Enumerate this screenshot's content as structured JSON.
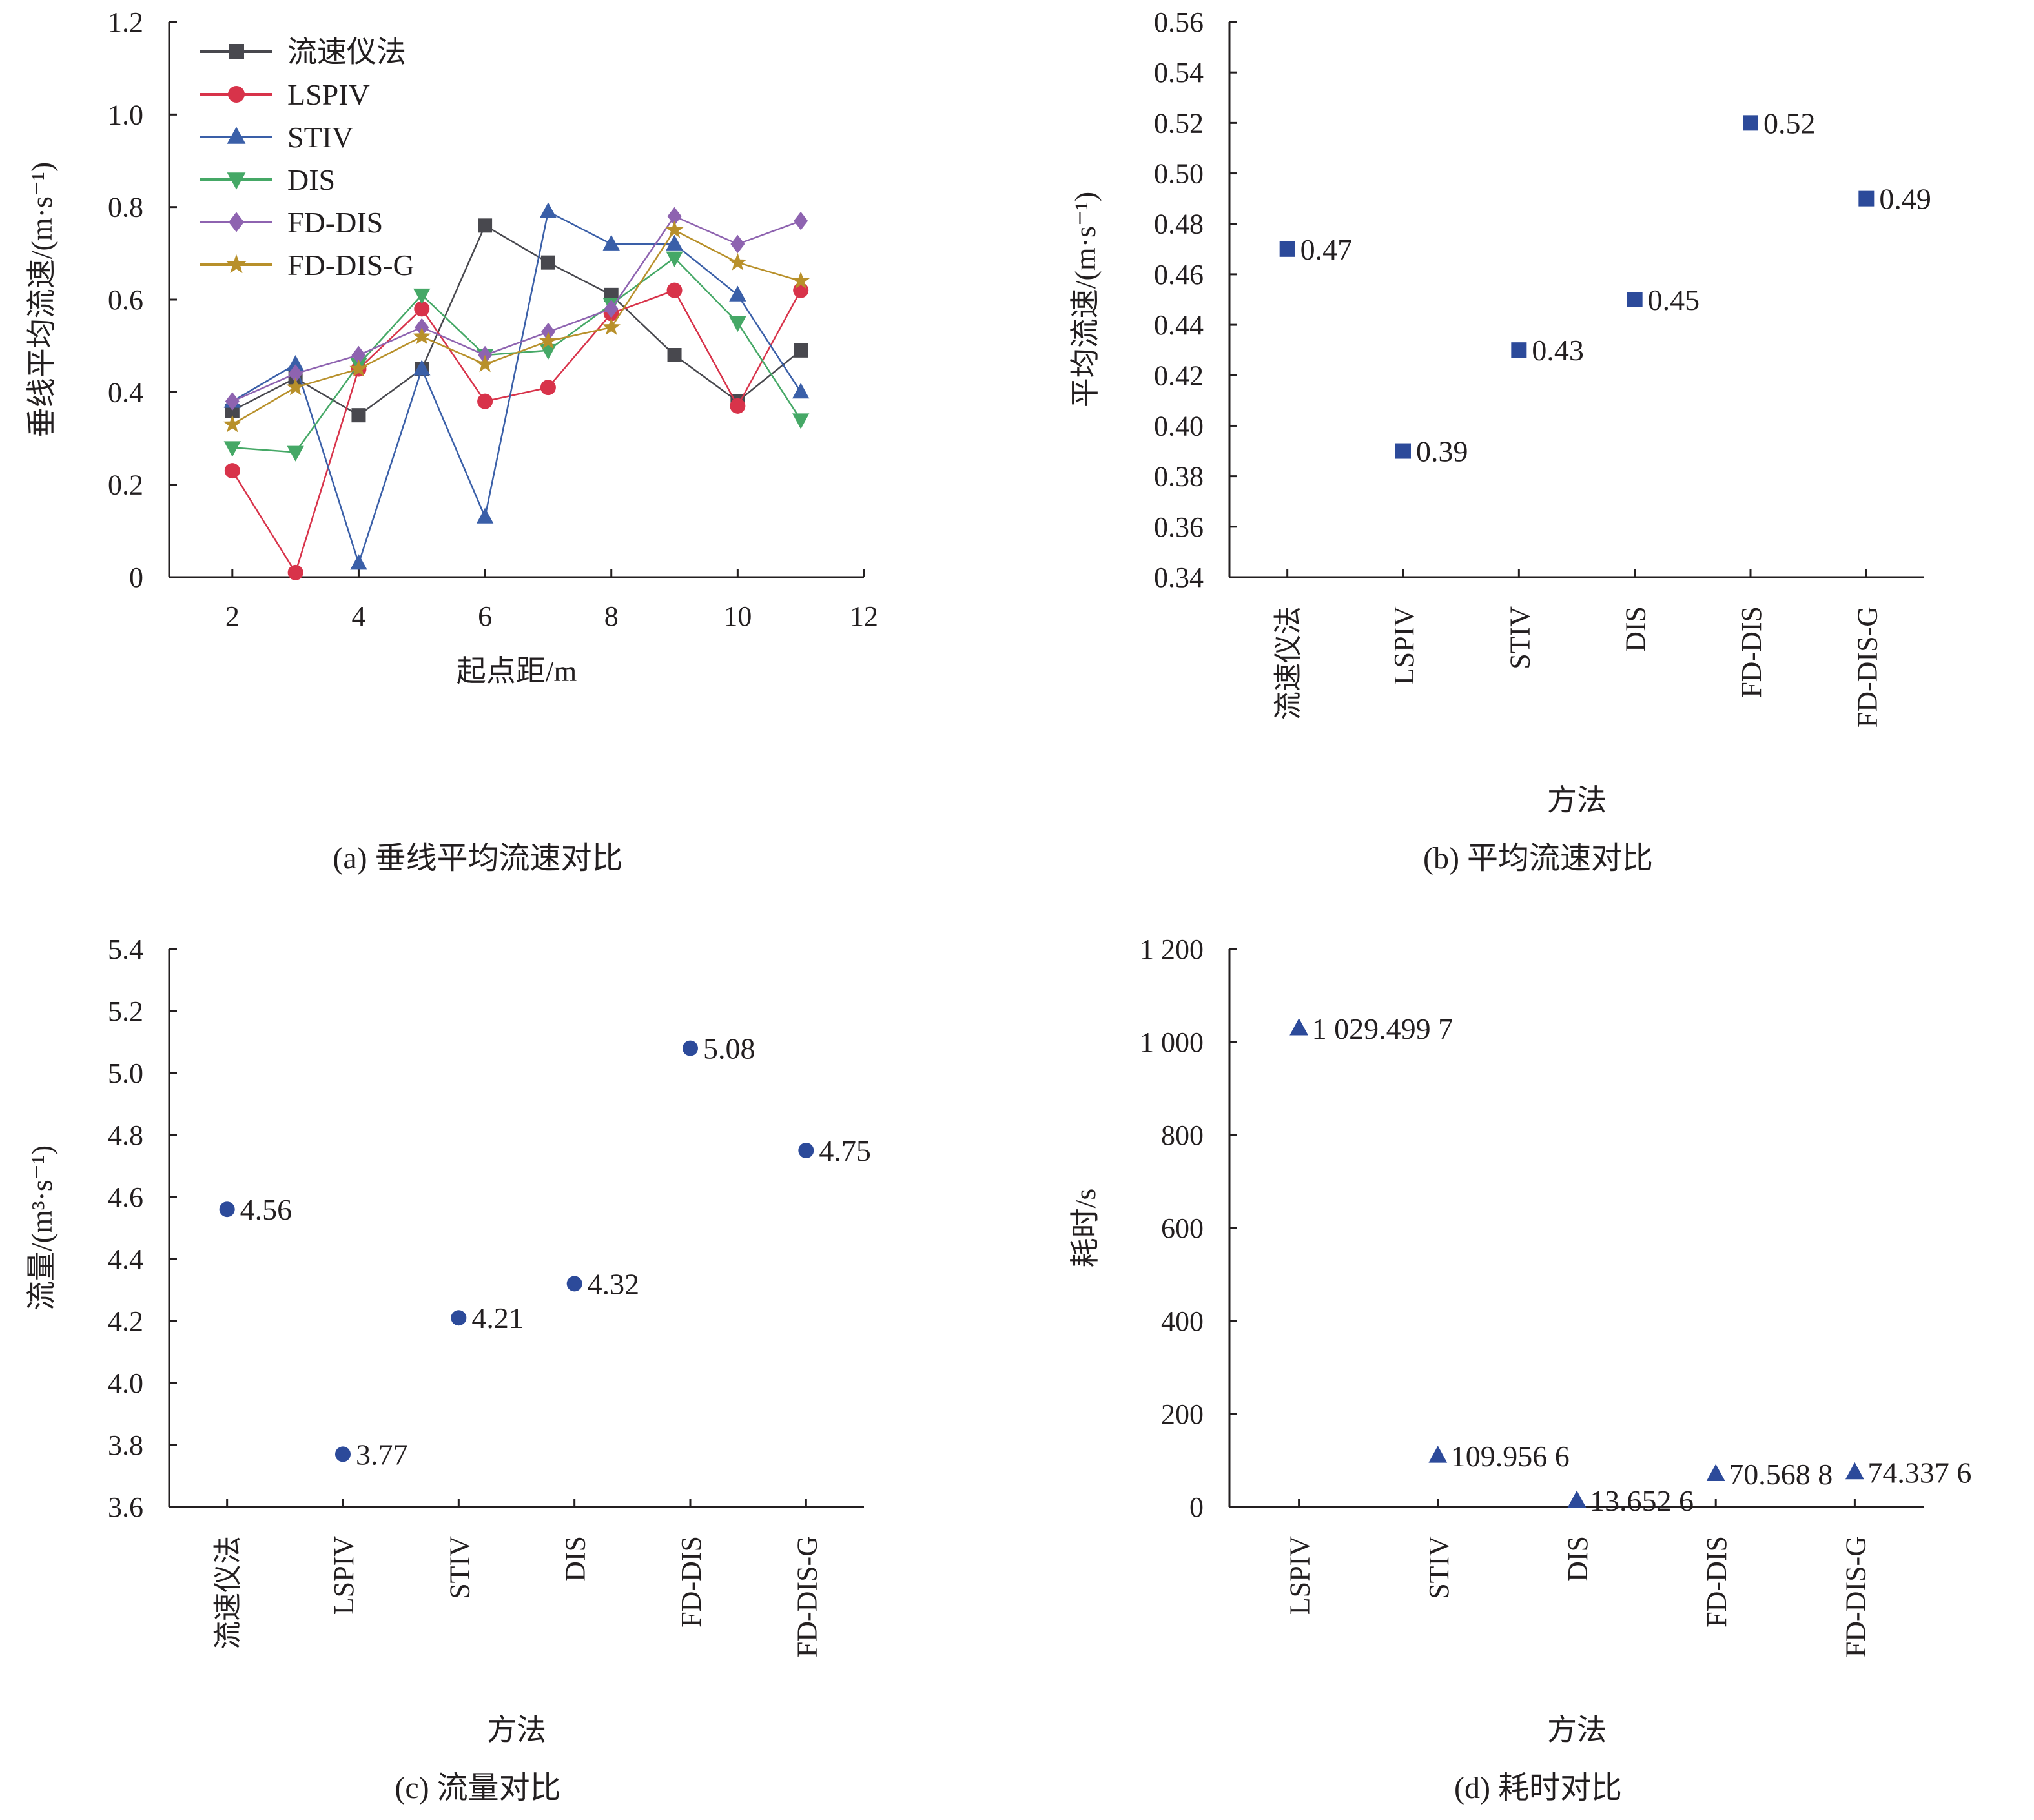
{
  "chart_data": [
    {
      "id": "a",
      "type": "line",
      "caption": "(a) 垂线平均流速对比",
      "title": "",
      "xlabel": "起点距/m",
      "ylabel": "垂线平均流速/(m·s⁻¹)",
      "xlim": [
        1,
        12
      ],
      "ylim": [
        0,
        1.2
      ],
      "xticks": [
        2,
        4,
        6,
        8,
        10,
        12
      ],
      "yticks": [
        0,
        0.2,
        0.4,
        0.6,
        0.8,
        1.0,
        1.2
      ],
      "ytick_labels": [
        "0",
        "0.2",
        "0.4",
        "0.6",
        "0.8",
        "1.0",
        "1.2"
      ],
      "legend_position": "top-left",
      "grid": false,
      "x": [
        2,
        3,
        4,
        5,
        6,
        7,
        8,
        9,
        10,
        11
      ],
      "series": [
        {
          "name": "流速仪法",
          "marker": "square",
          "color": "#48484e",
          "values": [
            0.36,
            0.43,
            0.35,
            0.45,
            0.76,
            0.68,
            0.61,
            0.48,
            0.38,
            0.49
          ]
        },
        {
          "name": "LSPIV",
          "marker": "circle",
          "color": "#d8334a",
          "values": [
            0.23,
            0.01,
            0.45,
            0.58,
            0.38,
            0.41,
            0.57,
            0.62,
            0.37,
            0.62
          ]
        },
        {
          "name": "STIV",
          "marker": "triangle-up",
          "color": "#3a5fa8",
          "values": [
            0.38,
            0.46,
            0.03,
            0.45,
            0.13,
            0.79,
            0.72,
            0.72,
            0.61,
            0.4
          ]
        },
        {
          "name": "DIS",
          "marker": "triangle-down",
          "color": "#45a866",
          "values": [
            0.28,
            0.27,
            0.46,
            0.61,
            0.48,
            0.49,
            0.59,
            0.69,
            0.55,
            0.34
          ]
        },
        {
          "name": "FD-DIS",
          "marker": "diamond",
          "color": "#8e63b0",
          "values": [
            0.38,
            0.44,
            0.48,
            0.54,
            0.48,
            0.53,
            0.58,
            0.78,
            0.72,
            0.77
          ]
        },
        {
          "name": "FD-DIS-G",
          "marker": "star",
          "color": "#b8902a",
          "values": [
            0.33,
            0.41,
            0.45,
            0.52,
            0.46,
            0.51,
            0.54,
            0.75,
            0.68,
            0.64
          ]
        }
      ]
    },
    {
      "id": "b",
      "type": "scatter",
      "caption": "(b) 平均流速对比",
      "title": "",
      "xlabel": "方法",
      "ylabel": "平均流速/(m·s⁻¹)",
      "ylim": [
        0.34,
        0.56
      ],
      "yticks": [
        0.34,
        0.36,
        0.38,
        0.4,
        0.42,
        0.44,
        0.46,
        0.48,
        0.5,
        0.52,
        0.54,
        0.56
      ],
      "ytick_labels": [
        "0.34",
        "0.36",
        "0.38",
        "0.40",
        "0.42",
        "0.44",
        "0.46",
        "0.48",
        "0.50",
        "0.52",
        "0.54",
        "0.56"
      ],
      "categories": [
        "流速仪法",
        "LSPIV",
        "STIV",
        "DIS",
        "FD-DIS",
        "FD-DIS-G"
      ],
      "values": [
        0.47,
        0.39,
        0.43,
        0.45,
        0.52,
        0.49
      ],
      "data_labels": [
        "0.47",
        "0.39",
        "0.43",
        "0.45",
        "0.52",
        "0.49"
      ],
      "marker": "square",
      "color": "#2c4a9a",
      "grid": false
    },
    {
      "id": "c",
      "type": "scatter",
      "caption": "(c) 流量对比",
      "title": "",
      "xlabel": "方法",
      "ylabel": "流量/(m³·s⁻¹)",
      "ylim": [
        3.6,
        5.4
      ],
      "yticks": [
        3.6,
        3.8,
        4.0,
        4.2,
        4.4,
        4.6,
        4.8,
        5.0,
        5.2,
        5.4
      ],
      "ytick_labels": [
        "3.6",
        "3.8",
        "4.0",
        "4.2",
        "4.4",
        "4.6",
        "4.8",
        "5.0",
        "5.2",
        "5.4"
      ],
      "categories": [
        "流速仪法",
        "LSPIV",
        "STIV",
        "DIS",
        "FD-DIS",
        "FD-DIS-G"
      ],
      "values": [
        4.56,
        3.77,
        4.21,
        4.32,
        5.08,
        4.75
      ],
      "data_labels": [
        "4.56",
        "3.77",
        "4.21",
        "4.32",
        "5.08",
        "4.75"
      ],
      "marker": "circle",
      "color": "#2c4a9a",
      "grid": false
    },
    {
      "id": "d",
      "type": "scatter",
      "caption": "(d) 耗时对比",
      "title": "",
      "xlabel": "方法",
      "ylabel": "耗时/s",
      "ylim": [
        0,
        1200
      ],
      "yticks": [
        0,
        200,
        400,
        600,
        800,
        1000,
        1200
      ],
      "ytick_labels": [
        "0",
        "200",
        "400",
        "600",
        "800",
        "1 000",
        "1 200"
      ],
      "categories": [
        "LSPIV",
        "STIV",
        "DIS",
        "FD-DIS",
        "FD-DIS-G"
      ],
      "values": [
        1029.4997,
        109.9566,
        13.6526,
        70.5688,
        74.3376
      ],
      "data_labels": [
        "1 029.499 7",
        "109.956 6",
        "13.652 6",
        "70.568 8",
        "74.337 6"
      ],
      "marker": "triangle-up",
      "color": "#2c4a9a",
      "grid": false
    }
  ]
}
